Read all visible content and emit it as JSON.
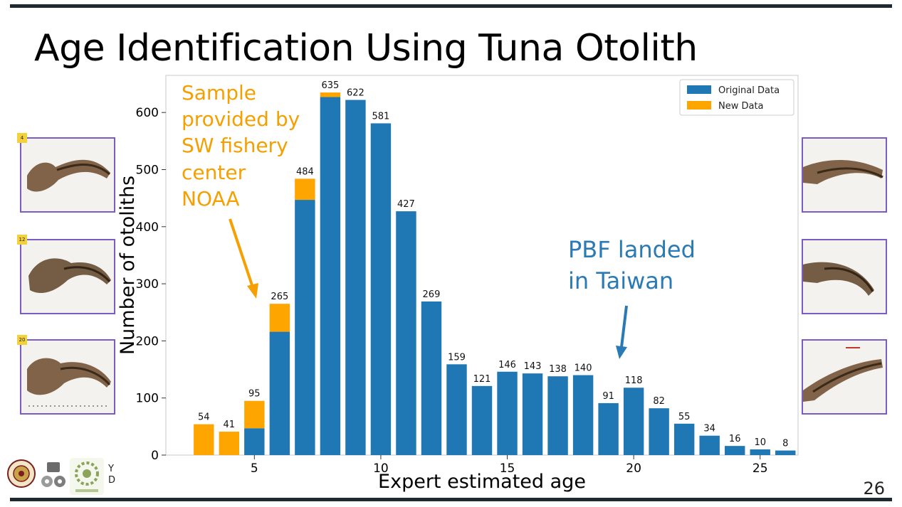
{
  "slide": {
    "title": "Age Identification Using Tuna Otolith",
    "page_number": "26",
    "thumbnail_tags": [
      "4",
      "12",
      "20"
    ],
    "footer_text": [
      "Y",
      "D"
    ]
  },
  "annotations": {
    "noaa": [
      "Sample",
      "provided by",
      "SW fishery",
      "center",
      "NOAA"
    ],
    "taiwan": [
      "PBF landed",
      "in Taiwan"
    ]
  },
  "colors": {
    "original": "#1f77b4",
    "new": "#ffa500",
    "noaa_text": "#f5a000",
    "taiwan_text": "#2a7ab5",
    "border": "#7b5cc2",
    "bars_dark": "#1f2a30"
  },
  "chart_data": {
    "type": "bar",
    "stacked": true,
    "xlabel": "Expert estimated age",
    "ylabel": "Number of otoliths",
    "xlim": [
      1.5,
      26.5
    ],
    "ylim": [
      0,
      665
    ],
    "xticks": [
      5,
      10,
      15,
      20,
      25
    ],
    "yticks": [
      0,
      100,
      200,
      300,
      400,
      500,
      600
    ],
    "legend_position": "top-right",
    "categories": [
      3,
      4,
      5,
      6,
      7,
      8,
      9,
      10,
      11,
      12,
      13,
      14,
      15,
      16,
      17,
      18,
      19,
      20,
      21,
      22,
      23,
      24,
      25,
      26
    ],
    "series": [
      {
        "name": "Original Data",
        "values": [
          0,
          0,
          47,
          216,
          447,
          627,
          622,
          581,
          427,
          269,
          159,
          121,
          146,
          143,
          138,
          140,
          91,
          118,
          82,
          55,
          34,
          16,
          10,
          8
        ]
      },
      {
        "name": "New Data",
        "values": [
          54,
          41,
          48,
          49,
          37,
          8,
          0,
          0,
          0,
          0,
          0,
          0,
          0,
          0,
          0,
          0,
          0,
          0,
          0,
          0,
          0,
          0,
          0,
          0
        ]
      }
    ],
    "totals": [
      54,
      41,
      95,
      265,
      484,
      635,
      622,
      581,
      427,
      269,
      159,
      121,
      146,
      143,
      138,
      140,
      91,
      118,
      82,
      55,
      34,
      16,
      10,
      8
    ]
  }
}
